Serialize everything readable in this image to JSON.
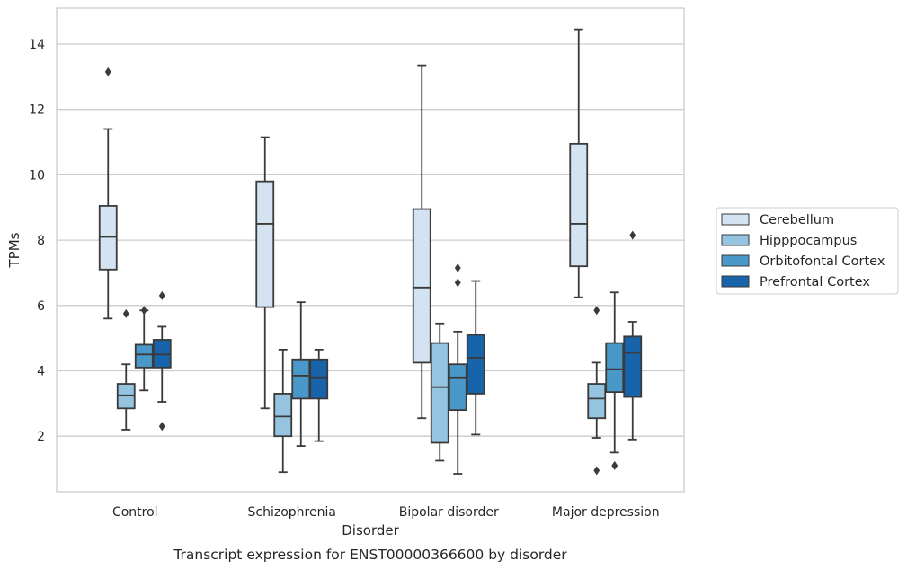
{
  "chart_data": {
    "type": "box",
    "title": "",
    "caption": "Transcript expression for ENST00000366600 by disorder",
    "xlabel": "Disorder",
    "ylabel": "TPMs",
    "ylim": [
      0.3,
      15.1
    ],
    "yticks": [
      2,
      4,
      6,
      8,
      10,
      12,
      14
    ],
    "grid": "horizontal",
    "legend_position": "right",
    "categories": [
      "Control",
      "Schizophrenia",
      "Bipolar disorder",
      "Major depression"
    ],
    "series": [
      {
        "name": "Cerebellum",
        "color": "#d3e3f2",
        "boxes": [
          {
            "whisker_low": 5.6,
            "q1": 7.1,
            "median": 8.1,
            "q3": 9.05,
            "whisker_high": 11.4,
            "outliers": [
              13.15
            ]
          },
          {
            "whisker_low": 2.85,
            "q1": 5.95,
            "median": 8.5,
            "q3": 9.8,
            "whisker_high": 11.15,
            "outliers": []
          },
          {
            "whisker_low": 2.55,
            "q1": 4.25,
            "median": 6.55,
            "q3": 8.95,
            "whisker_high": 13.35,
            "outliers": []
          },
          {
            "whisker_low": 6.25,
            "q1": 7.2,
            "median": 8.5,
            "q3": 10.95,
            "whisker_high": 14.45,
            "outliers": []
          }
        ]
      },
      {
        "name": "Hipppocampus",
        "color": "#94c4df",
        "boxes": [
          {
            "whisker_low": 2.2,
            "q1": 2.85,
            "median": 3.25,
            "q3": 3.6,
            "whisker_high": 4.2,
            "outliers": [
              5.75
            ]
          },
          {
            "whisker_low": 0.9,
            "q1": 2.0,
            "median": 2.6,
            "q3": 3.3,
            "whisker_high": 4.65,
            "outliers": []
          },
          {
            "whisker_low": 1.25,
            "q1": 1.8,
            "median": 3.5,
            "q3": 4.85,
            "whisker_high": 5.45,
            "outliers": []
          },
          {
            "whisker_low": 1.95,
            "q1": 2.55,
            "median": 3.15,
            "q3": 3.6,
            "whisker_high": 4.25,
            "outliers": [
              5.85,
              0.95
            ]
          }
        ]
      },
      {
        "name": "Orbitofontal Cortex",
        "color": "#4a98c9",
        "boxes": [
          {
            "whisker_low": 3.4,
            "q1": 4.1,
            "median": 4.5,
            "q3": 4.8,
            "whisker_high": 5.85,
            "outliers": [
              5.85
            ]
          },
          {
            "whisker_low": 1.7,
            "q1": 3.15,
            "median": 3.85,
            "q3": 4.35,
            "whisker_high": 6.1,
            "outliers": []
          },
          {
            "whisker_low": 0.85,
            "q1": 2.8,
            "median": 3.8,
            "q3": 4.2,
            "whisker_high": 5.2,
            "outliers": [
              7.15,
              6.7
            ]
          },
          {
            "whisker_low": 1.5,
            "q1": 3.35,
            "median": 4.05,
            "q3": 4.85,
            "whisker_high": 6.4,
            "outliers": [
              1.1
            ]
          }
        ]
      },
      {
        "name": "Prefrontal Cortex",
        "color": "#1764ab",
        "boxes": [
          {
            "whisker_low": 3.05,
            "q1": 4.1,
            "median": 4.5,
            "q3": 4.95,
            "whisker_high": 5.35,
            "outliers": [
              6.3,
              2.3
            ]
          },
          {
            "whisker_low": 1.85,
            "q1": 3.15,
            "median": 3.8,
            "q3": 4.35,
            "whisker_high": 4.65,
            "outliers": []
          },
          {
            "whisker_low": 2.05,
            "q1": 3.3,
            "median": 4.4,
            "q3": 5.1,
            "whisker_high": 6.75,
            "outliers": []
          },
          {
            "whisker_low": 1.9,
            "q1": 3.2,
            "median": 4.55,
            "q3": 5.05,
            "whisker_high": 5.5,
            "outliers": [
              8.15
            ]
          }
        ]
      }
    ]
  }
}
